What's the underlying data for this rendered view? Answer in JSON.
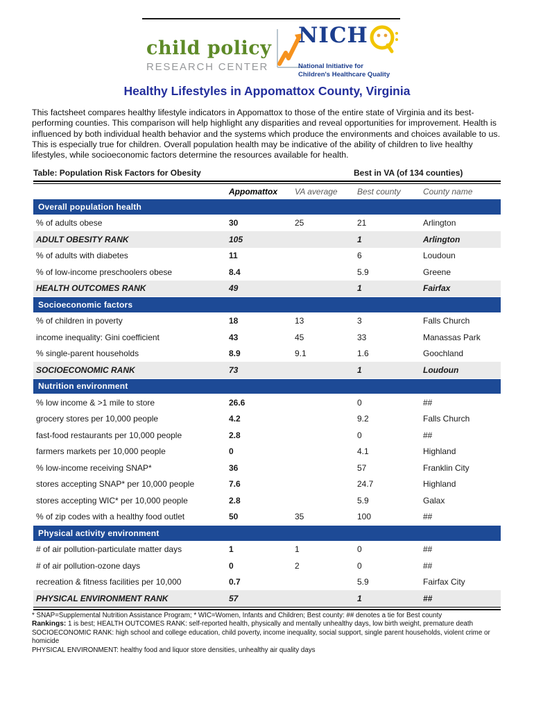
{
  "header": {
    "cprc": {
      "line1": "child policy",
      "line2": "RESEARCH CENTER"
    },
    "nichq": {
      "wordmark": "NICH",
      "q_letter": "Q",
      "tagline1": "National Initiative for",
      "tagline2": "Children's Healthcare Quality"
    }
  },
  "title": "Healthy Lifestyles in Appomattox County, Virginia",
  "intro": "This factsheet compares healthy lifestyle indicators in Appomattox to those of the entire state of Virginia and its best-performing counties. This comparison will help highlight any disparities and reveal opportunities for improvement. Health is influenced by both individual health behavior and the systems which produce the environments and choices available to us. This is especially true for children. Overall population health may be indicative of the ability of children to live healthy lifestyles, while socioeconomic factors determine the resources available for health.",
  "table": {
    "caption": "Table: Population Risk Factors for Obesity",
    "caption_right": "Best in VA (of 134 counties)",
    "columns": [
      "Appomattox",
      "VA average",
      "Best county",
      "County name"
    ],
    "sections": [
      {
        "name": "Overall population health",
        "rows": [
          {
            "label": "% of adults obese",
            "appomattox": "30",
            "va": "25",
            "best": "21",
            "county": "Arlington",
            "rank": false
          },
          {
            "label": "ADULT OBESITY RANK",
            "appomattox": "105",
            "va": "",
            "best": "1",
            "county": "Arlington",
            "rank": true
          },
          {
            "label": "% of adults with diabetes",
            "appomattox": "11",
            "va": "",
            "best": "6",
            "county": "Loudoun",
            "rank": false
          },
          {
            "label": "% of low-income preschoolers obese",
            "appomattox": "8.4",
            "va": "",
            "best": "5.9",
            "county": "Greene",
            "rank": false
          },
          {
            "label": "HEALTH OUTCOMES RANK",
            "appomattox": "49",
            "va": "",
            "best": "1",
            "county": "Fairfax",
            "rank": true
          }
        ]
      },
      {
        "name": "Socioeconomic factors",
        "rows": [
          {
            "label": "% of children in poverty",
            "appomattox": "18",
            "va": "13",
            "best": "3",
            "county": "Falls Church",
            "rank": false
          },
          {
            "label": "income inequality: Gini coefficient",
            "appomattox": "43",
            "va": "45",
            "best": "33",
            "county": "Manassas Park",
            "rank": false
          },
          {
            "label": "% single-parent households",
            "appomattox": "8.9",
            "va": "9.1",
            "best": "1.6",
            "county": "Goochland",
            "rank": false
          },
          {
            "label": "SOCIOECONOMIC RANK",
            "appomattox": "73",
            "va": "",
            "best": "1",
            "county": "Loudoun",
            "rank": true
          }
        ]
      },
      {
        "name": "Nutrition environment",
        "rows": [
          {
            "label": "% low income & >1 mile to store",
            "appomattox": "26.6",
            "va": "",
            "best": "0",
            "county": "##",
            "rank": false
          },
          {
            "label": "grocery stores per 10,000 people",
            "appomattox": "4.2",
            "va": "",
            "best": "9.2",
            "county": "Falls Church",
            "rank": false
          },
          {
            "label": "fast-food restaurants per 10,000 people",
            "appomattox": "2.8",
            "va": "",
            "best": "0",
            "county": "##",
            "rank": false
          },
          {
            "label": "farmers markets per 10,000 people",
            "appomattox": "0",
            "va": "",
            "best": "4.1",
            "county": "Highland",
            "rank": false
          },
          {
            "label": "% low-income receiving SNAP*",
            "appomattox": "36",
            "va": "",
            "best": "57",
            "county": "Franklin City",
            "rank": false
          },
          {
            "label": "stores accepting SNAP* per 10,000 people",
            "appomattox": "7.6",
            "va": "",
            "best": "24.7",
            "county": "Highland",
            "rank": false
          },
          {
            "label": "stores accepting WIC* per 10,000 people",
            "appomattox": "2.8",
            "va": "",
            "best": "5.9",
            "county": "Galax",
            "rank": false
          },
          {
            "label": "% of zip codes with a healthy food outlet",
            "appomattox": "50",
            "va": "35",
            "best": "100",
            "county": "##",
            "rank": false
          }
        ]
      },
      {
        "name": "Physical activity environment",
        "rows": [
          {
            "label": "# of air pollution-particulate matter days",
            "appomattox": "1",
            "va": "1",
            "best": "0",
            "county": "##",
            "rank": false
          },
          {
            "label": "# of air pollution-ozone days",
            "appomattox": "0",
            "va": "2",
            "best": "0",
            "county": "##",
            "rank": false
          },
          {
            "label": "recreation & fitness facilities per 10,000",
            "appomattox": "0.7",
            "va": "",
            "best": "5.9",
            "county": "Fairfax City",
            "rank": false
          },
          {
            "label": "PHYSICAL ENVIRONMENT RANK",
            "appomattox": "57",
            "va": "",
            "best": "1",
            "county": "##",
            "rank": true
          }
        ]
      }
    ]
  },
  "footnotes": {
    "line1": "* SNAP=Supplemental Nutrition Assistance Program; * WIC=Women, Infants and Children; Best county: ## denotes a tie for Best county",
    "line2_bold": "Rankings:",
    "line2_rest": " 1 is best; HEALTH OUTCOMES RANK: self-reported health, physically and mentally unhealthy days, low birth weight, premature death",
    "line3": "SOCIOECONOMIC RANK: high school and college education, child poverty, income inequality, social support, single parent households, violent crime or homicide",
    "line4": "PHYSICAL ENVIRONMENT: healthy food and liquor store densities, unhealthy air quality days"
  },
  "colors": {
    "section_bar_blue": "#1d4a96",
    "title_blue": "#232e9c",
    "rank_row_gray": "#eaeaea",
    "cprc_green": "#5e8a28",
    "cprc_gray": "#97999b",
    "chart_orange": "#f6921e",
    "nichq_blue": "#1c3e8e",
    "nichq_yellow": "#f2c500"
  }
}
